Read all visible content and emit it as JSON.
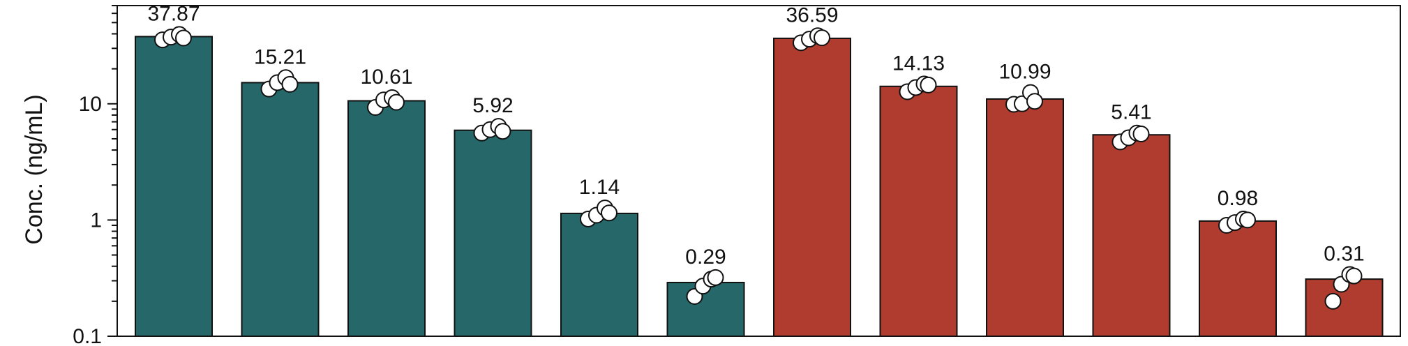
{
  "chart_data": {
    "type": "bar",
    "ylabel": "Conc. (ng/mL)",
    "yscale": "log",
    "ylim": [
      0.1,
      70
    ],
    "yticks": [
      0.1,
      1,
      10
    ],
    "ytick_labels": [
      "0.1",
      "1",
      "10"
    ],
    "grid": false,
    "colors": {
      "group1": "#26676a",
      "group2": "#b03c30",
      "point_fill": "#ffffff",
      "edge": "#111111"
    },
    "bars": [
      {
        "group": "group1",
        "value": 37.87,
        "label": "37.87",
        "points": [
          35.5,
          37.5,
          39.5,
          36.8
        ]
      },
      {
        "group": "group1",
        "value": 15.21,
        "label": "15.21",
        "points": [
          13.4,
          15.2,
          16.8,
          14.7
        ]
      },
      {
        "group": "group1",
        "value": 10.61,
        "label": "10.61",
        "points": [
          9.3,
          10.8,
          11.3,
          10.3
        ]
      },
      {
        "group": "group1",
        "value": 5.92,
        "label": "5.92",
        "points": [
          5.6,
          6.0,
          6.4,
          5.8
        ]
      },
      {
        "group": "group1",
        "value": 1.14,
        "label": "1.14",
        "points": [
          1.02,
          1.1,
          1.27,
          1.15
        ]
      },
      {
        "group": "group1",
        "value": 0.29,
        "label": "0.29",
        "points": [
          0.22,
          0.27,
          0.31,
          0.32
        ]
      },
      {
        "group": "group2",
        "value": 36.59,
        "label": "36.59",
        "points": [
          33.5,
          36.0,
          38.5,
          37.0
        ]
      },
      {
        "group": "group2",
        "value": 14.13,
        "label": "14.13",
        "points": [
          12.7,
          13.8,
          14.8,
          14.5
        ]
      },
      {
        "group": "group2",
        "value": 10.99,
        "label": "10.99",
        "points": [
          9.9,
          10.0,
          12.5,
          10.5
        ]
      },
      {
        "group": "group2",
        "value": 5.41,
        "label": "5.41",
        "points": [
          4.7,
          5.1,
          5.6,
          5.5
        ]
      },
      {
        "group": "group2",
        "value": 0.98,
        "label": "0.98",
        "points": [
          0.9,
          0.95,
          1.02,
          1.0
        ]
      },
      {
        "group": "group2",
        "value": 0.31,
        "label": "0.31",
        "points": [
          0.2,
          0.28,
          0.34,
          0.33
        ]
      }
    ]
  }
}
